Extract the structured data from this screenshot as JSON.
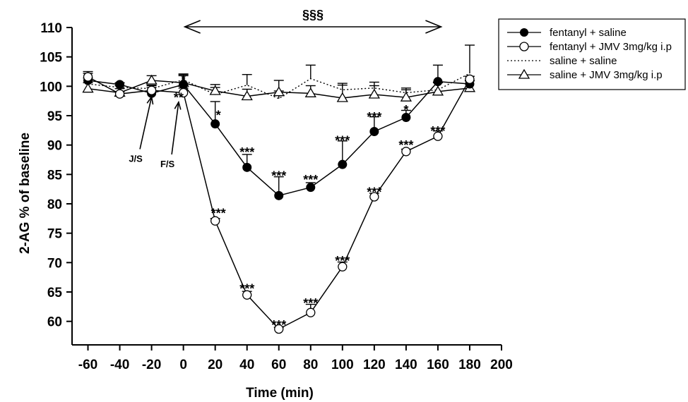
{
  "chart_data": {
    "type": "line",
    "xlabel": "Time (min)",
    "ylabel": "2-AG % of baseline",
    "xlim": [
      -70,
      200
    ],
    "ylim": [
      56,
      110
    ],
    "xticks": [
      -60,
      -40,
      -20,
      0,
      20,
      40,
      60,
      80,
      100,
      120,
      140,
      160,
      180,
      200
    ],
    "yticks": [
      60,
      65,
      70,
      75,
      80,
      85,
      90,
      95,
      100,
      105,
      110
    ],
    "grid": false,
    "legend_position": "top-right",
    "x": [
      -60,
      -40,
      -20,
      0,
      20,
      40,
      60,
      80,
      100,
      120,
      140,
      160,
      180
    ],
    "series": [
      {
        "name": "fentanyl + saline",
        "marker": "filled-circle",
        "line": "solid",
        "values": [
          101.0,
          100.3,
          98.8,
          100.3,
          93.6,
          86.2,
          81.4,
          82.8,
          86.7,
          92.3,
          94.7,
          100.8,
          100.4
        ],
        "errors": [
          1.2,
          0.3,
          1.0,
          1.5,
          3.8,
          2.2,
          3.2,
          0.8,
          4.0,
          2.5,
          1.2,
          2.8,
          0.5
        ]
      },
      {
        "name": "fentanyl + JMV 3mg/kg i.p",
        "marker": "open-circle",
        "line": "solid",
        "values": [
          101.6,
          98.7,
          99.3,
          98.9,
          77.1,
          64.5,
          58.7,
          61.5,
          69.3,
          81.2,
          88.9,
          91.5,
          101.2
        ],
        "errors": [
          0.9,
          0.4,
          0.8,
          0.8,
          0.4,
          0.6,
          0.3,
          1.4,
          0.8,
          0.6,
          0.4,
          0.9,
          0.5
        ]
      },
      {
        "name": "saline + saline",
        "marker": "none",
        "line": "dotted",
        "values": [
          100.4,
          99.8,
          99.6,
          101.1,
          98.6,
          100.2,
          97.9,
          101.3,
          99.4,
          99.7,
          98.9,
          99.4,
          102.2
        ],
        "errors": [
          1.0,
          0.3,
          0.6,
          1.0,
          1.2,
          1.8,
          1.3,
          2.3,
          1.1,
          1.0,
          0.8,
          1.2,
          4.8
        ]
      },
      {
        "name": "saline + JMV 3mg/kg i.p",
        "marker": "open-triangle",
        "line": "solid",
        "values": [
          99.6,
          98.9,
          101.0,
          100.6,
          99.2,
          98.3,
          99.0,
          98.8,
          98.0,
          98.6,
          98.1,
          99.1,
          99.7
        ],
        "errors": [
          1.0,
          0.7,
          0.8,
          1.4,
          1.1,
          1.2,
          2.0,
          1.3,
          2.2,
          1.5,
          1.3,
          1.6,
          1.3
        ]
      }
    ],
    "significance": [
      {
        "x": 0,
        "y": 101.5,
        "text": "*"
      },
      {
        "x": -3,
        "y": 98.3,
        "text": "**"
      },
      {
        "x": 22,
        "y": 95.3,
        "text": "*"
      },
      {
        "x": 22,
        "y": 78.6,
        "text": "***"
      },
      {
        "x": 40,
        "y": 89.0,
        "text": "***"
      },
      {
        "x": 40,
        "y": 65.8,
        "text": "***"
      },
      {
        "x": 60,
        "y": 85.0,
        "text": "***"
      },
      {
        "x": 60,
        "y": 59.6,
        "text": "***"
      },
      {
        "x": 80,
        "y": 84.3,
        "text": "***"
      },
      {
        "x": 80,
        "y": 63.3,
        "text": "***"
      },
      {
        "x": 100,
        "y": 91.0,
        "text": "***"
      },
      {
        "x": 100,
        "y": 70.5,
        "text": "***"
      },
      {
        "x": 120,
        "y": 95.0,
        "text": "***"
      },
      {
        "x": 120,
        "y": 82.2,
        "text": "***"
      },
      {
        "x": 140,
        "y": 96.2,
        "text": "*"
      },
      {
        "x": 140,
        "y": 90.2,
        "text": "***"
      },
      {
        "x": 160,
        "y": 92.6,
        "text": "***"
      }
    ],
    "bracket": {
      "x1": 0,
      "x2": 162,
      "label": "§§§"
    },
    "annotations": [
      {
        "text": "J/S",
        "x_text": -30,
        "y_text": 90.5,
        "x_arrow": -20,
        "y_arrow": 98.2
      },
      {
        "text": "F/S",
        "x_text": -10,
        "y_text": 89.6,
        "x_arrow": -3,
        "y_arrow": 97.3
      }
    ]
  }
}
